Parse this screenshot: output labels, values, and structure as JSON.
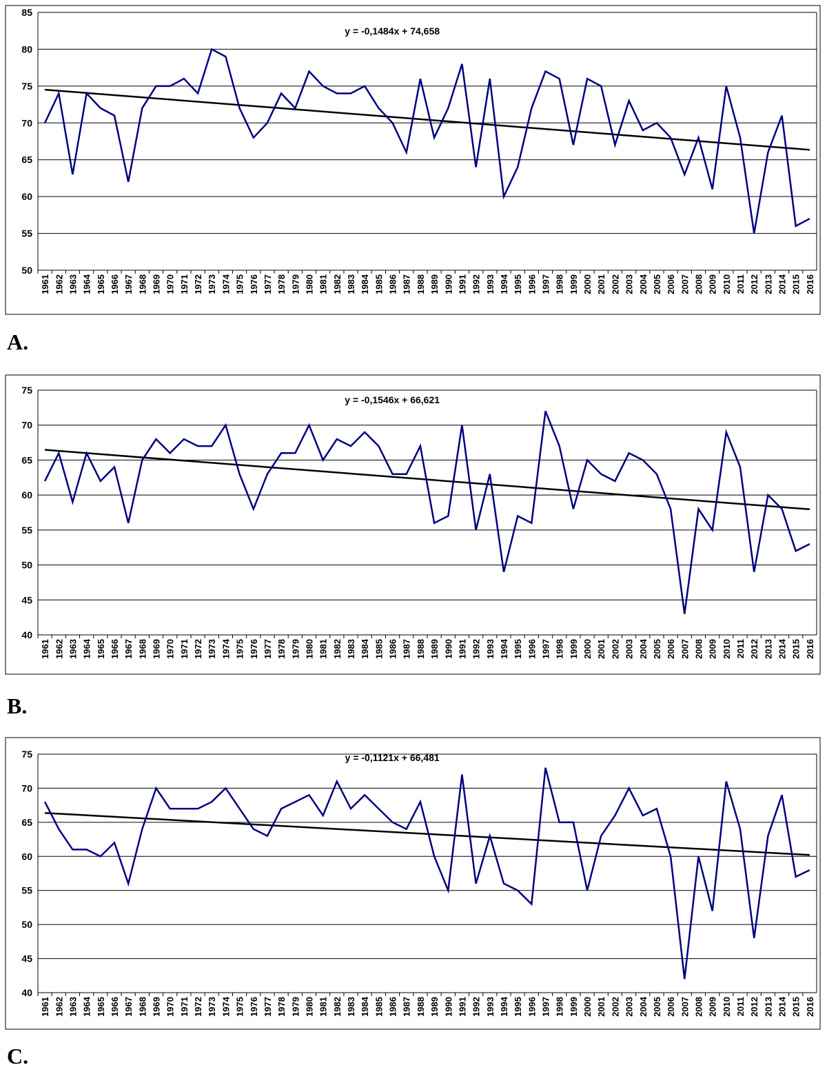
{
  "chart_data": [
    {
      "type": "line",
      "panel_label": "A.",
      "equation": "y = -0,1484x + 74,658",
      "trend": {
        "slope": -0.1484,
        "intercept": 74.658
      },
      "ylim": [
        50,
        85
      ],
      "yticks": [
        50,
        55,
        60,
        65,
        70,
        75,
        80,
        85
      ],
      "x": [
        "1961",
        "1962",
        "1963",
        "1964",
        "1965",
        "1966",
        "1967",
        "1968",
        "1969",
        "1970",
        "1971",
        "1972",
        "1973",
        "1974",
        "1975",
        "1976",
        "1977",
        "1978",
        "1979",
        "1980",
        "1981",
        "1982",
        "1983",
        "1984",
        "1985",
        "1986",
        "1987",
        "1988",
        "1989",
        "1990",
        "1991",
        "1992",
        "1993",
        "1994",
        "1995",
        "1996",
        "1997",
        "1998",
        "1999",
        "2000",
        "2001",
        "2002",
        "2003",
        "2004",
        "2005",
        "2006",
        "2007",
        "2008",
        "2009",
        "2010",
        "2011",
        "2012",
        "2013",
        "2014",
        "2015",
        "2016"
      ],
      "values": [
        70,
        74,
        63,
        74,
        72,
        71,
        62,
        72,
        75,
        75,
        76,
        74,
        80,
        79,
        72,
        68,
        70,
        74,
        72,
        77,
        75,
        74,
        74,
        75,
        72,
        70,
        66,
        76,
        68,
        72,
        78,
        64,
        76,
        60,
        64,
        72,
        77,
        76,
        67,
        76,
        75,
        67,
        73,
        69,
        70,
        68,
        63,
        68,
        61,
        75,
        68,
        55,
        66,
        71,
        56,
        57
      ],
      "grid": true,
      "series_color": "#000080",
      "trend_color": "#000000"
    },
    {
      "type": "line",
      "panel_label": "B.",
      "equation": "y = -0,1546x + 66,621",
      "trend": {
        "slope": -0.1546,
        "intercept": 66.621
      },
      "ylim": [
        40,
        75
      ],
      "yticks": [
        40,
        45,
        50,
        55,
        60,
        65,
        70,
        75
      ],
      "x": [
        "1961",
        "1962",
        "1963",
        "1964",
        "1965",
        "1966",
        "1967",
        "1968",
        "1969",
        "1970",
        "1971",
        "1972",
        "1973",
        "1974",
        "1975",
        "1976",
        "1977",
        "1978",
        "1979",
        "1980",
        "1981",
        "1982",
        "1983",
        "1984",
        "1985",
        "1986",
        "1987",
        "1988",
        "1989",
        "1990",
        "1991",
        "1992",
        "1993",
        "1994",
        "1995",
        "1996",
        "1997",
        "1998",
        "1999",
        "2000",
        "2001",
        "2002",
        "2003",
        "2004",
        "2005",
        "2006",
        "2007",
        "2008",
        "2009",
        "2010",
        "2011",
        "2012",
        "2013",
        "2014",
        "2015",
        "2016"
      ],
      "values": [
        62,
        66,
        59,
        66,
        62,
        64,
        56,
        65,
        68,
        66,
        68,
        67,
        67,
        70,
        63,
        58,
        63,
        66,
        66,
        70,
        65,
        68,
        67,
        69,
        67,
        63,
        63,
        67,
        56,
        57,
        70,
        55,
        63,
        49,
        57,
        56,
        72,
        67,
        58,
        65,
        63,
        62,
        66,
        65,
        63,
        58,
        43,
        58,
        55,
        69,
        64,
        49,
        60,
        58,
        52,
        53
      ],
      "grid": true,
      "series_color": "#000080",
      "trend_color": "#000000"
    },
    {
      "type": "line",
      "panel_label": "C.",
      "equation": "y = -0,1121x + 66,481",
      "trend": {
        "slope": -0.1121,
        "intercept": 66.481
      },
      "ylim": [
        40,
        75
      ],
      "yticks": [
        40,
        45,
        50,
        55,
        60,
        65,
        70,
        75
      ],
      "x": [
        "1961",
        "1962",
        "1963",
        "1964",
        "1965",
        "1966",
        "1967",
        "1968",
        "1969",
        "1970",
        "1971",
        "1972",
        "1973",
        "1974",
        "1975",
        "1976",
        "1977",
        "1978",
        "1979",
        "1980",
        "1981",
        "1982",
        "1983",
        "1984",
        "1985",
        "1986",
        "1987",
        "1988",
        "1989",
        "1990",
        "1991",
        "1992",
        "1993",
        "1994",
        "1995",
        "1996",
        "1997",
        "1998",
        "1999",
        "2000",
        "2001",
        "2002",
        "2003",
        "2004",
        "2005",
        "2006",
        "2007",
        "2008",
        "2009",
        "2010",
        "2011",
        "2012",
        "2013",
        "2014",
        "2015",
        "2016"
      ],
      "values": [
        68,
        64,
        61,
        61,
        60,
        62,
        56,
        64,
        70,
        67,
        67,
        67,
        68,
        70,
        67,
        64,
        63,
        67,
        68,
        69,
        66,
        71,
        67,
        69,
        67,
        65,
        64,
        68,
        60,
        55,
        72,
        56,
        63,
        56,
        55,
        53,
        73,
        65,
        65,
        55,
        63,
        66,
        70,
        66,
        67,
        60,
        42,
        60,
        52,
        71,
        64,
        48,
        63,
        69,
        57,
        58
      ],
      "grid": true,
      "series_color": "#000080",
      "trend_color": "#000000"
    }
  ]
}
